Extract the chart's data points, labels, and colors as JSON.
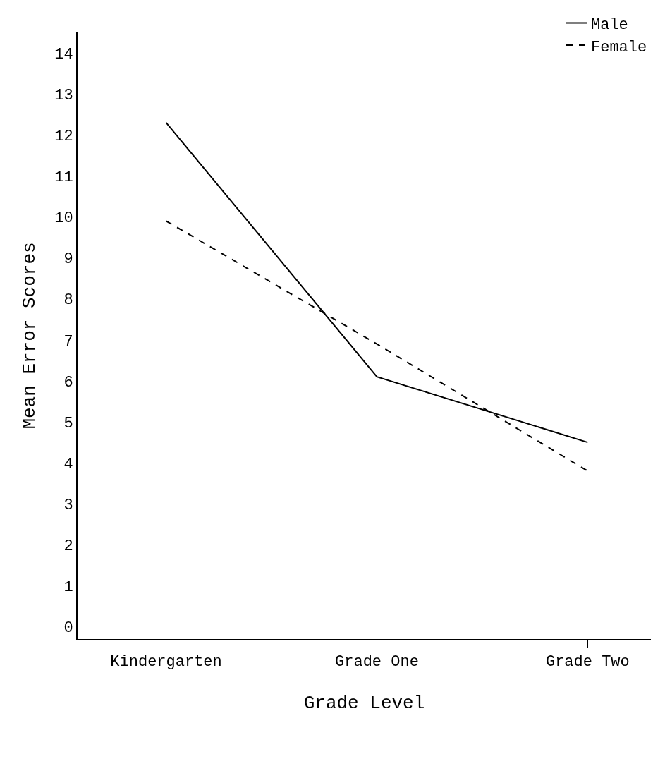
{
  "chart_data": {
    "type": "line",
    "xlabel": "Grade Level",
    "ylabel": "Mean Error Scores",
    "categories": [
      "Kindergarten",
      "Grade One",
      "Grade Two"
    ],
    "series": [
      {
        "name": "Male",
        "color": "#000000",
        "values": [
          12.3,
          6.1,
          4.5
        ],
        "line_style": "solid"
      },
      {
        "name": "Female",
        "color": "#000000",
        "values": [
          9.9,
          6.9,
          3.8
        ],
        "line_style": "dashed"
      }
    ],
    "ylim": [
      -0.3,
      14.5
    ],
    "yticks": [
      0,
      1,
      2,
      3,
      4,
      5,
      6,
      7,
      8,
      9,
      10,
      11,
      12,
      13,
      14
    ],
    "legend": "top right",
    "marker": "none"
  }
}
